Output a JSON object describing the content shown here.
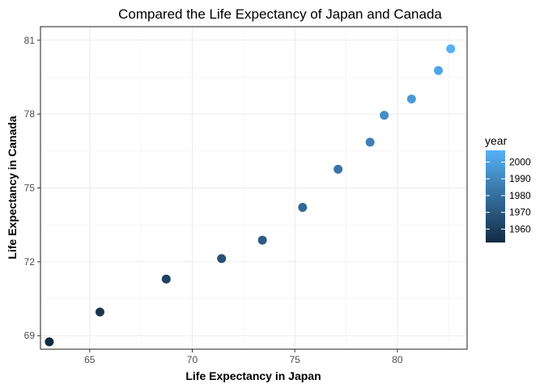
{
  "chart_data": {
    "type": "scatter",
    "title": "Compared the Life Expectancy of Japan and Canada",
    "xlabel": "Life Expectancy in Japan",
    "ylabel": "Life Expectancy in Canada",
    "xlim": [
      62.6,
      83.4
    ],
    "ylim": [
      68.45,
      81.55
    ],
    "x_ticks": [
      65,
      70,
      75,
      80
    ],
    "y_ticks": [
      69,
      72,
      75,
      78,
      81
    ],
    "grid": true,
    "legend": {
      "title": "year",
      "placement": "right",
      "range": [
        1952,
        2007
      ],
      "ticks": [
        1960,
        1970,
        1980,
        1990,
        2000
      ],
      "color_low": "#132B43",
      "color_high": "#56B1F7"
    },
    "points": [
      {
        "year": 1952,
        "x": 63.03,
        "y": 68.75
      },
      {
        "year": 1957,
        "x": 65.5,
        "y": 69.96
      },
      {
        "year": 1962,
        "x": 68.73,
        "y": 71.3
      },
      {
        "year": 1967,
        "x": 71.43,
        "y": 72.13
      },
      {
        "year": 1972,
        "x": 73.42,
        "y": 72.88
      },
      {
        "year": 1977,
        "x": 75.38,
        "y": 74.21
      },
      {
        "year": 1982,
        "x": 77.11,
        "y": 75.76
      },
      {
        "year": 1987,
        "x": 78.67,
        "y": 76.86
      },
      {
        "year": 1992,
        "x": 79.36,
        "y": 77.95
      },
      {
        "year": 1997,
        "x": 80.69,
        "y": 78.61
      },
      {
        "year": 2002,
        "x": 82.0,
        "y": 79.77
      },
      {
        "year": 2007,
        "x": 82.6,
        "y": 80.65
      }
    ]
  }
}
